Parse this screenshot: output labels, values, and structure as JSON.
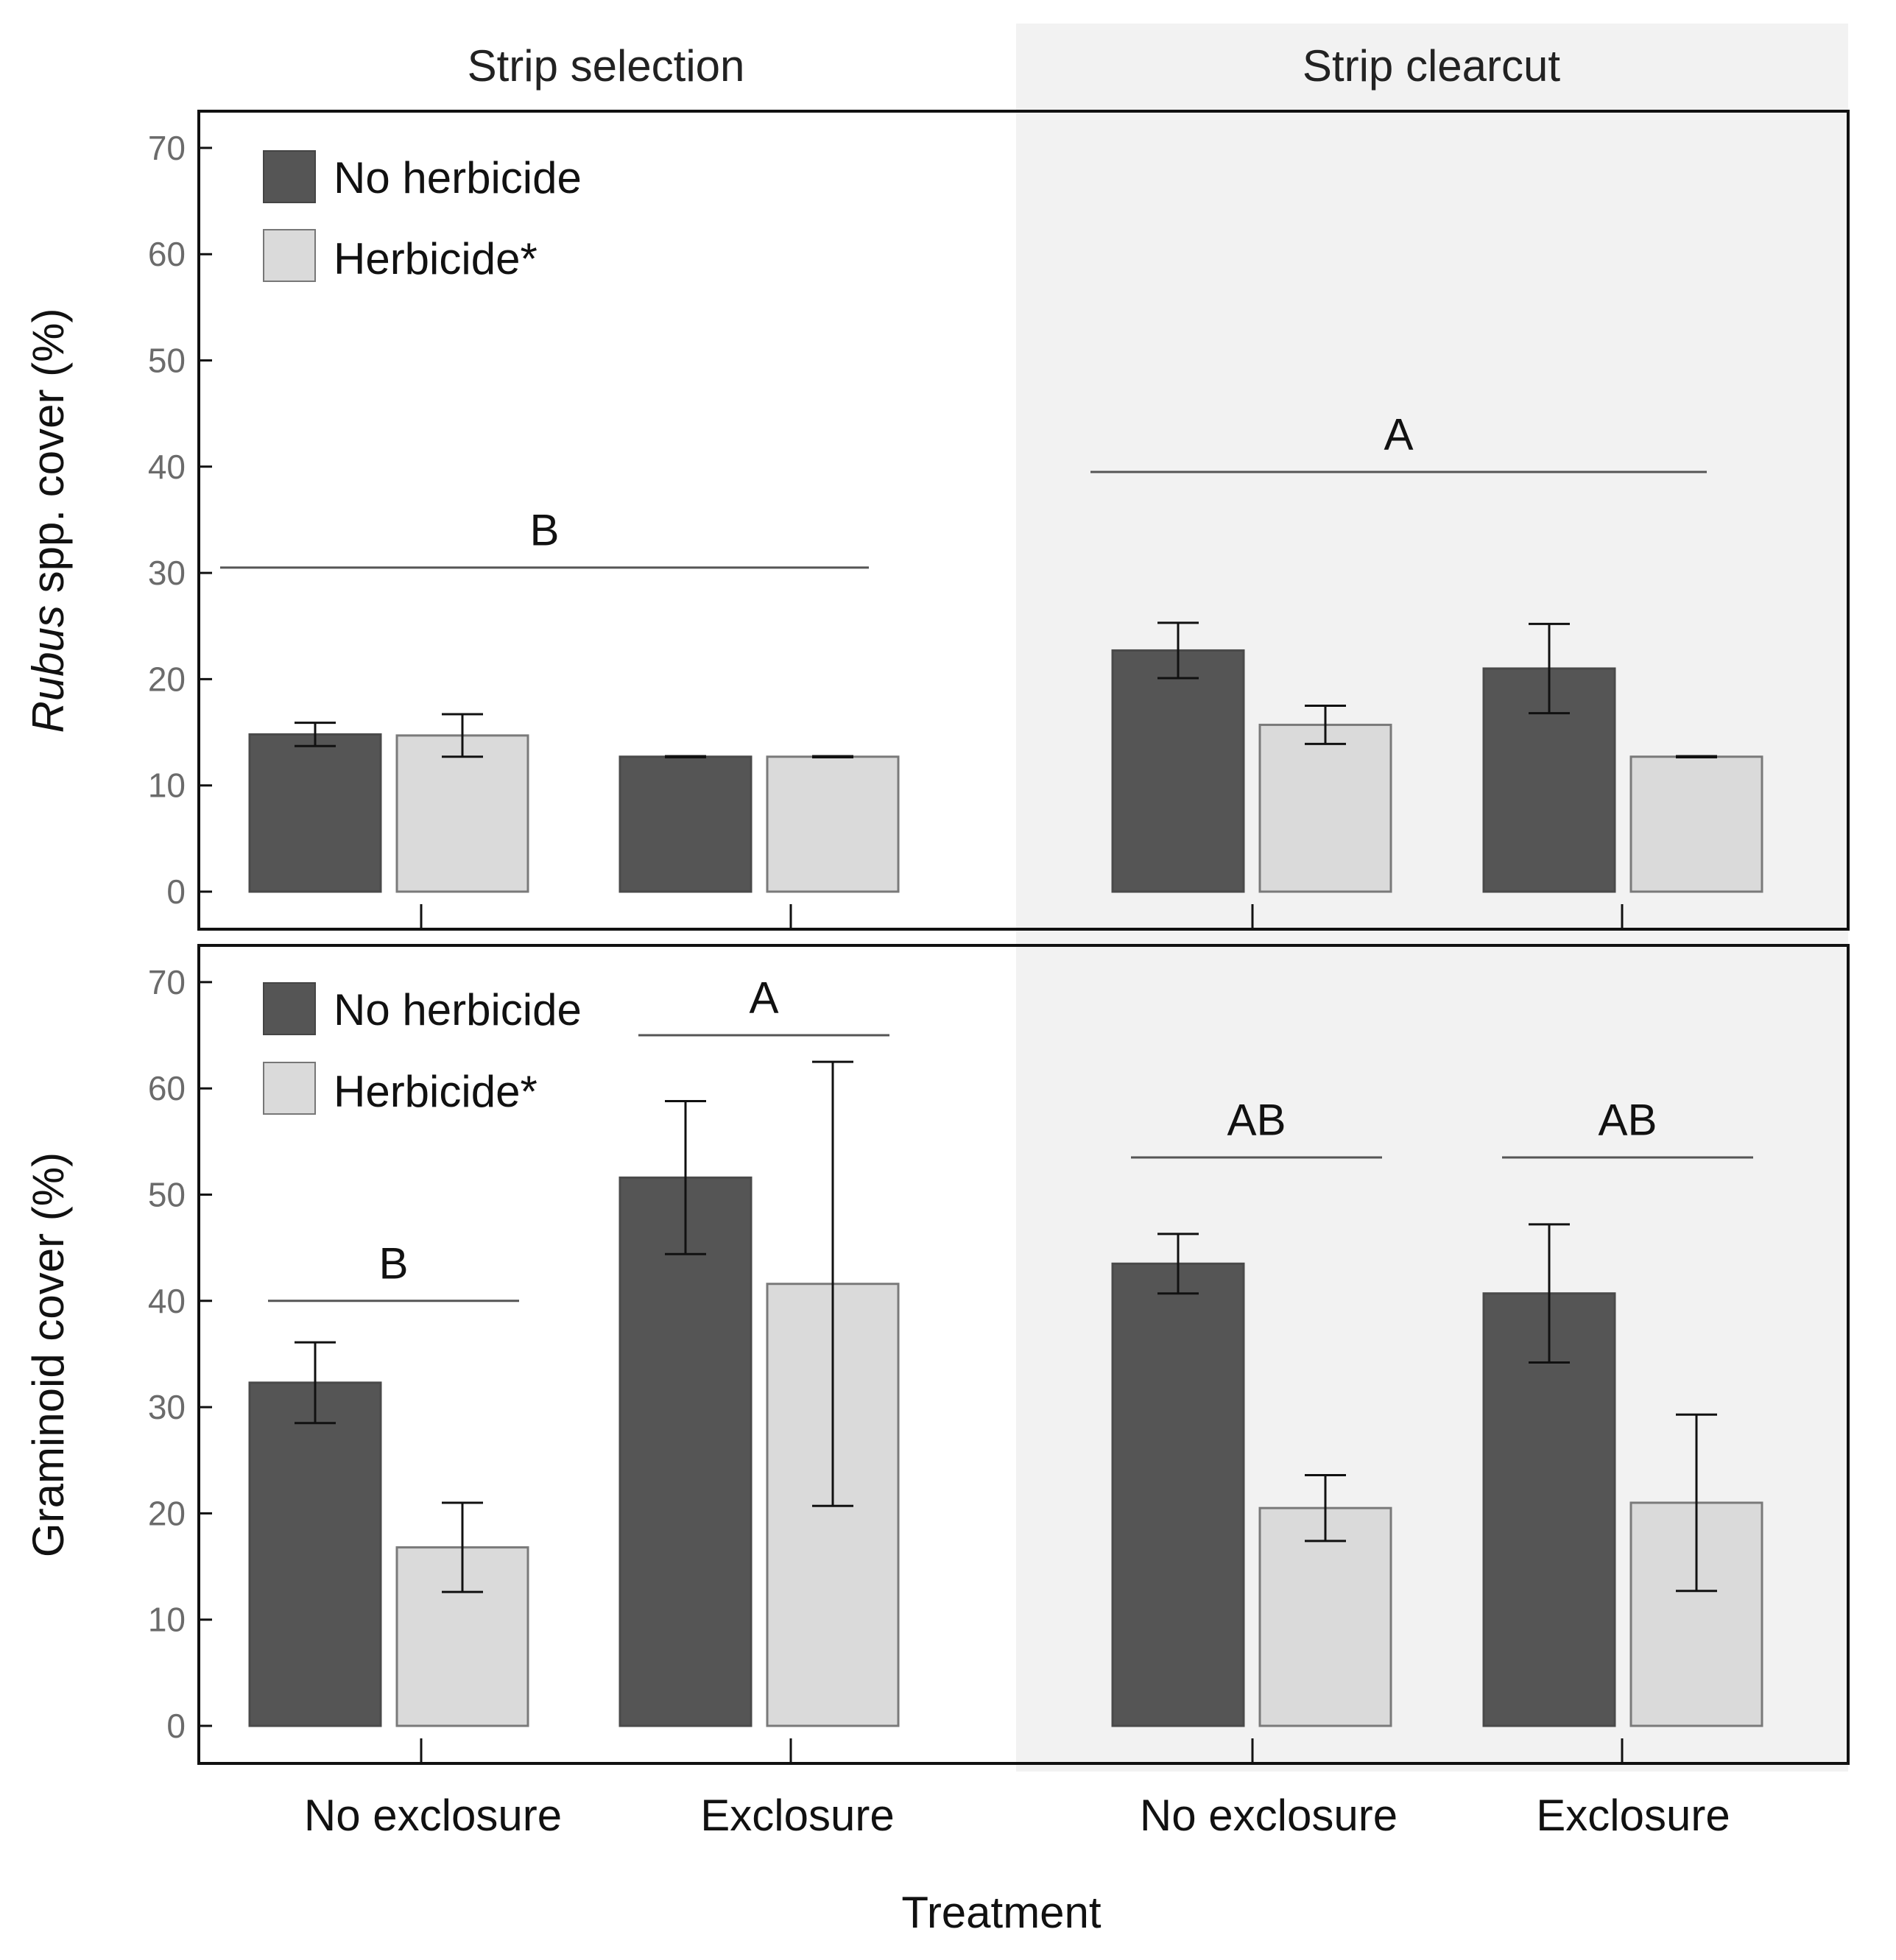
{
  "chart_data": [
    {
      "type": "bar",
      "panel": "top",
      "facets": [
        "Strip selection",
        "Strip clearcut"
      ],
      "categories": [
        "No exclosure",
        "Exclosure"
      ],
      "series": [
        {
          "name": "No herbicide",
          "color": "#555555",
          "values": [
            [
              14.8,
              12.7
            ],
            [
              22.7,
              21.0
            ]
          ],
          "errors": [
            [
              1.1,
              0.05
            ],
            [
              2.6,
              4.2
            ]
          ]
        },
        {
          "name": "Herbicide*",
          "color": "#dadada",
          "values": [
            [
              14.7,
              12.7
            ],
            [
              15.7,
              12.7
            ]
          ],
          "errors": [
            [
              2.0,
              0.05
            ],
            [
              1.8,
              0.05
            ]
          ]
        }
      ],
      "ylabel_italic": "Rubus",
      "ylabel_rest": " spp. cover (%)",
      "ylim": [
        -3.5,
        74
      ],
      "yticks": [
        0,
        10,
        20,
        30,
        40,
        50,
        60,
        70
      ],
      "yticklabels": [
        "0",
        "10",
        "20",
        "30",
        "40",
        "50",
        "60",
        "70"
      ],
      "legend": {
        "position": "top-left",
        "entries": [
          "No herbicide",
          "Herbicide*"
        ]
      },
      "annotations": [
        {
          "text": "B",
          "facet": 0,
          "span": "both",
          "line_y": 30.5,
          "text_y": 34
        },
        {
          "text": "A",
          "facet": 1,
          "span": "both",
          "line_y": 39.5,
          "text_y": 43
        }
      ]
    },
    {
      "type": "bar",
      "panel": "bottom",
      "facets": [
        "Strip selection",
        "Strip clearcut"
      ],
      "categories": [
        "No exclosure",
        "Exclosure"
      ],
      "series": [
        {
          "name": "No herbicide",
          "color": "#555555",
          "values": [
            [
              32.3,
              51.6
            ],
            [
              43.5,
              40.7
            ]
          ],
          "errors": [
            [
              3.8,
              7.2
            ],
            [
              2.8,
              6.5
            ]
          ]
        },
        {
          "name": "Herbicide*",
          "color": "#dadada",
          "values": [
            [
              16.8,
              41.6
            ],
            [
              20.5,
              21.0
            ]
          ],
          "errors": [
            [
              4.2,
              20.9
            ],
            [
              3.1,
              8.3
            ]
          ]
        }
      ],
      "ylabel": "Graminoid cover (%)",
      "xlabel": "Treatment",
      "ylim": [
        -3.5,
        74
      ],
      "yticks": [
        0,
        10,
        20,
        30,
        40,
        50,
        60,
        70
      ],
      "yticklabels": [
        "0",
        "10",
        "20",
        "30",
        "40",
        "50",
        "60",
        "70"
      ],
      "legend": {
        "position": "top-left",
        "entries": [
          "No herbicide",
          "Herbicide*"
        ]
      },
      "annotations": [
        {
          "text": "B",
          "facet": 0,
          "span": 0,
          "line_y": 40,
          "text_y": 43.5
        },
        {
          "text": "A",
          "facet": 0,
          "span": 1,
          "line_y": 65,
          "text_y": 68.5
        },
        {
          "text": "AB",
          "facet": 1,
          "span": 0,
          "line_y": 53.5,
          "text_y": 57
        },
        {
          "text": "AB",
          "facet": 1,
          "span": 1,
          "line_y": 53.5,
          "text_y": 57
        }
      ]
    }
  ],
  "colors": {
    "no_herbicide": "#555555",
    "herbicide": "#dadada",
    "clearcut_background": "#f2f2f2"
  }
}
